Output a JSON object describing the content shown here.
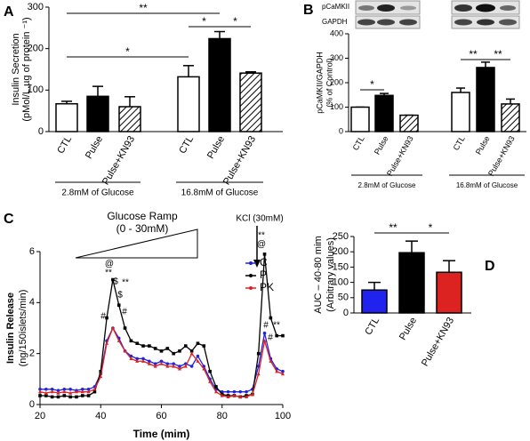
{
  "chart_data": [
    {
      "type": "bar",
      "panel": "A",
      "ylabel": [
        "Insulin Secretion",
        "(pMol/L.µg of protein ⁻¹)"
      ],
      "categories": [
        "CTL",
        "Pulse",
        "Pulse+KN93",
        "CTL",
        "Pulse",
        "Pulse+KN93"
      ],
      "values": [
        67,
        85,
        60,
        132,
        224,
        141
      ],
      "errors": [
        6,
        24,
        24,
        27,
        17,
        3
      ],
      "colors": [
        "#ffffff",
        "#000000",
        "hatch",
        "#ffffff",
        "#000000",
        "hatch"
      ],
      "groups": [
        "2.8mM of Glucose",
        "16.8mM of Glucose"
      ],
      "significance": [
        "**",
        "*",
        "*",
        "*"
      ],
      "ylim": [
        0,
        300
      ],
      "yticks": [
        0,
        100,
        200,
        300
      ]
    },
    {
      "type": "bar",
      "panel": "B",
      "blot_labels": [
        "pCaMKII",
        "GAPDH"
      ],
      "ylabel": [
        "pCaMKII/GAPDH",
        "(% of Control)"
      ],
      "categories": [
        "CTL",
        "Pulse",
        "Pulse+KN93",
        "CTL",
        "Pulse",
        "Pulse+KN93"
      ],
      "values": [
        100,
        148,
        67,
        160,
        262,
        113
      ],
      "errors": [
        0,
        8,
        0,
        18,
        22,
        20
      ],
      "colors": [
        "#ffffff",
        "#000000",
        "hatch",
        "#ffffff",
        "#000000",
        "hatch"
      ],
      "groups": [
        "2.8mM of Glucose",
        "16.8mM of Glucose"
      ],
      "significance": [
        "*",
        "**",
        "**"
      ],
      "ylim": [
        0,
        400
      ],
      "yticks": [
        0,
        100,
        200,
        300,
        400
      ]
    },
    {
      "type": "line",
      "panel": "C",
      "xlabel": "Time (mim)",
      "ylabel": [
        "Insulin Release",
        "(ng/150islets/min)"
      ],
      "ramp_label": [
        "Glucose Ramp",
        "(0 - 30mM)"
      ],
      "kcl_label": "KCl (30mM)",
      "annotations": [
        "@",
        "**",
        "$",
        "**",
        "$",
        "#",
        "#",
        "**",
        "@",
        "#",
        "**",
        "#"
      ],
      "x": [
        20,
        22,
        24,
        26,
        28,
        30,
        32,
        34,
        36,
        38,
        40,
        42,
        44,
        46,
        48,
        50,
        52,
        54,
        56,
        58,
        60,
        62,
        64,
        66,
        68,
        70,
        72,
        74,
        76,
        78,
        80,
        82,
        84,
        86,
        88,
        90,
        92,
        94,
        96,
        98,
        100
      ],
      "series": [
        {
          "name": "C",
          "color": "#2222dd",
          "values": [
            0.6,
            0.6,
            0.6,
            0.55,
            0.6,
            0.6,
            0.55,
            0.6,
            0.6,
            0.7,
            1.2,
            2.5,
            3.0,
            2.6,
            2.1,
            1.9,
            1.8,
            1.8,
            1.7,
            1.6,
            1.7,
            1.6,
            1.6,
            1.5,
            1.6,
            1.5,
            1.9,
            1.5,
            1.0,
            0.6,
            0.5,
            0.5,
            0.5,
            0.5,
            0.5,
            0.6,
            1.5,
            2.8,
            1.8,
            1.4,
            1.3
          ]
        },
        {
          "name": "P",
          "color": "#000000",
          "values": [
            0.35,
            0.35,
            0.3,
            0.3,
            0.35,
            0.3,
            0.3,
            0.35,
            0.35,
            0.5,
            1.3,
            3.4,
            4.9,
            3.9,
            3.0,
            2.5,
            2.4,
            2.3,
            2.3,
            2.2,
            2.1,
            2.2,
            2.0,
            2.1,
            2.3,
            2.1,
            2.4,
            2.3,
            1.3,
            0.7,
            0.4,
            0.35,
            0.35,
            0.3,
            0.35,
            0.4,
            2.0,
            5.9,
            3.4,
            2.7,
            2.7
          ]
        },
        {
          "name": "PK",
          "color": "#dd2222",
          "values": [
            0.5,
            0.45,
            0.5,
            0.45,
            0.5,
            0.45,
            0.5,
            0.5,
            0.5,
            0.6,
            1.1,
            2.4,
            3.0,
            2.5,
            2.1,
            1.8,
            1.7,
            1.7,
            1.6,
            1.5,
            1.6,
            1.5,
            1.5,
            1.4,
            1.5,
            2.0,
            1.7,
            1.4,
            0.9,
            0.5,
            0.35,
            0.3,
            0.35,
            0.3,
            0.3,
            0.4,
            1.2,
            2.5,
            1.7,
            1.3,
            1.2
          ]
        }
      ],
      "legend": "upper right",
      "xlim": [
        20,
        100
      ],
      "xticks": [
        20,
        40,
        60,
        80,
        100
      ],
      "ylim": [
        0,
        6
      ],
      "yticks": [
        0,
        2,
        4,
        6
      ]
    },
    {
      "type": "bar",
      "panel": "D",
      "ylabel": [
        "AUC – 40-80 mim",
        "(Arbitrary values)"
      ],
      "categories": [
        "CTL",
        "Pulse",
        "Pulse+KN93"
      ],
      "values": [
        75,
        197,
        133
      ],
      "errors": [
        25,
        38,
        38
      ],
      "colors": [
        "#2222ee",
        "#000000",
        "#dd2222"
      ],
      "significance": [
        "**",
        "*"
      ],
      "ylim": [
        0,
        250
      ],
      "yticks": [
        0,
        50,
        100,
        150,
        200,
        250
      ]
    }
  ]
}
